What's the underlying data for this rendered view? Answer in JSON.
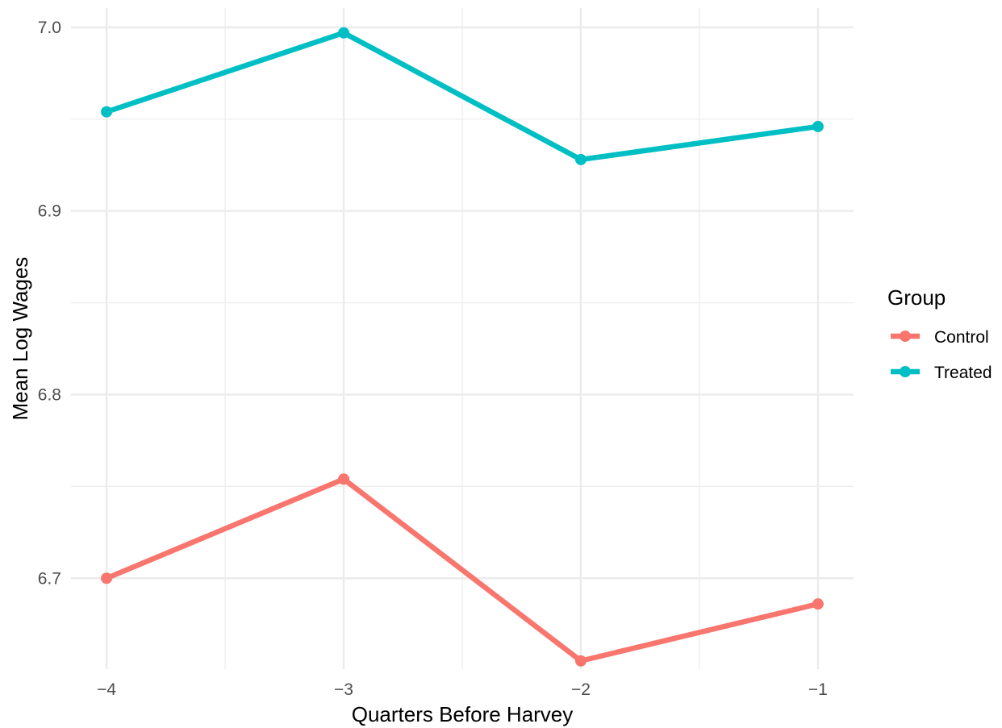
{
  "chart_data": {
    "type": "line",
    "xlabel": "Quarters Before Harvey",
    "ylabel": "Mean Log Wages",
    "x": [
      -4,
      -3,
      -2,
      -1
    ],
    "x_tick_labels": [
      "−4",
      "−3",
      "−2",
      "−1"
    ],
    "y_tick_values": [
      6.7,
      6.8,
      6.9,
      7.0
    ],
    "y_tick_labels": [
      "6.7",
      "6.8",
      "6.9",
      "7.0"
    ],
    "xlim": [
      -4.15,
      -0.85
    ],
    "ylim": [
      6.6505,
      7.0105
    ],
    "grid": true,
    "legend": {
      "title": "Group",
      "position": "right"
    },
    "series": [
      {
        "name": "Control",
        "color": "#F8766D",
        "values": [
          6.7,
          6.754,
          6.655,
          6.686
        ]
      },
      {
        "name": "Treated",
        "color": "#00BFC4",
        "values": [
          6.954,
          6.997,
          6.928,
          6.946
        ]
      }
    ]
  }
}
